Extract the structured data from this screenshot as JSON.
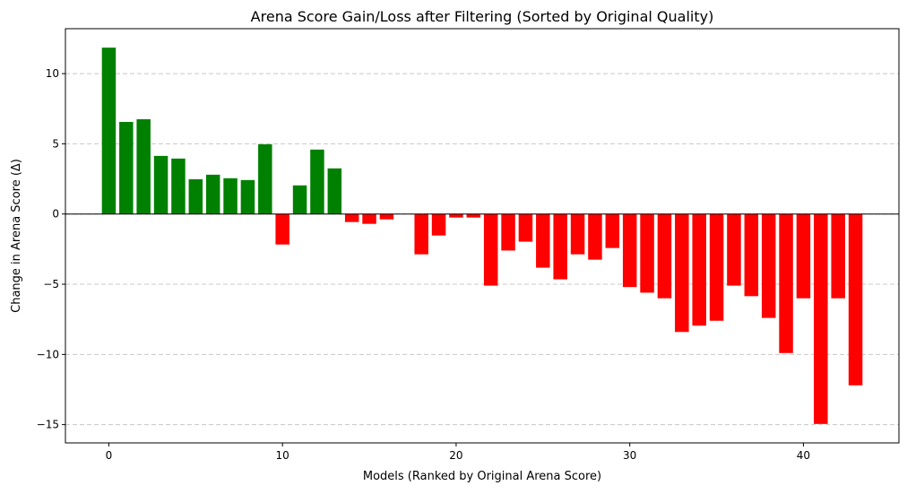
{
  "chart_data": {
    "type": "bar",
    "title": "Arena Score Gain/Loss after Filtering (Sorted by Original Quality)",
    "xlabel": "Models (Ranked by Original Arena Score)",
    "ylabel": "Change in Arena Score (Δ)",
    "xlim": [
      -2.5,
      45.5
    ],
    "ylim": [
      -16.3,
      13.2
    ],
    "xticks": [
      0,
      10,
      20,
      30,
      40
    ],
    "xtick_labels": [
      "0",
      "10",
      "20",
      "30",
      "40"
    ],
    "yticks": [
      10,
      5,
      0,
      -5,
      -10,
      -15
    ],
    "ytick_labels": [
      "10",
      "5",
      "0",
      "−5",
      "−10",
      "−15"
    ],
    "grid": "y-dashed",
    "positive_color": "#008000",
    "negative_color": "#ff0000",
    "x": [
      0,
      1,
      2,
      3,
      4,
      5,
      6,
      7,
      8,
      9,
      10,
      11,
      12,
      13,
      14,
      15,
      16,
      17,
      18,
      19,
      20,
      21,
      22,
      23,
      24,
      25,
      26,
      27,
      28,
      29,
      30,
      31,
      32,
      33,
      34,
      35,
      36,
      37,
      38,
      39,
      40,
      41,
      42,
      43
    ],
    "values": [
      11.85,
      6.56,
      6.75,
      4.14,
      3.95,
      2.48,
      2.8,
      2.55,
      2.42,
      4.97,
      -2.17,
      2.04,
      4.59,
      3.25,
      -0.57,
      -0.7,
      -0.38,
      0,
      -2.87,
      -1.53,
      -0.25,
      -0.25,
      -5.1,
      -2.6,
      -1.97,
      -3.82,
      -4.65,
      -2.87,
      -3.25,
      -2.42,
      -5.2,
      -5.6,
      -6.0,
      -8.4,
      -7.95,
      -7.6,
      -5.1,
      -5.85,
      -7.4,
      -9.9,
      -6.0,
      -14.95,
      -6.0,
      -12.2
    ]
  }
}
